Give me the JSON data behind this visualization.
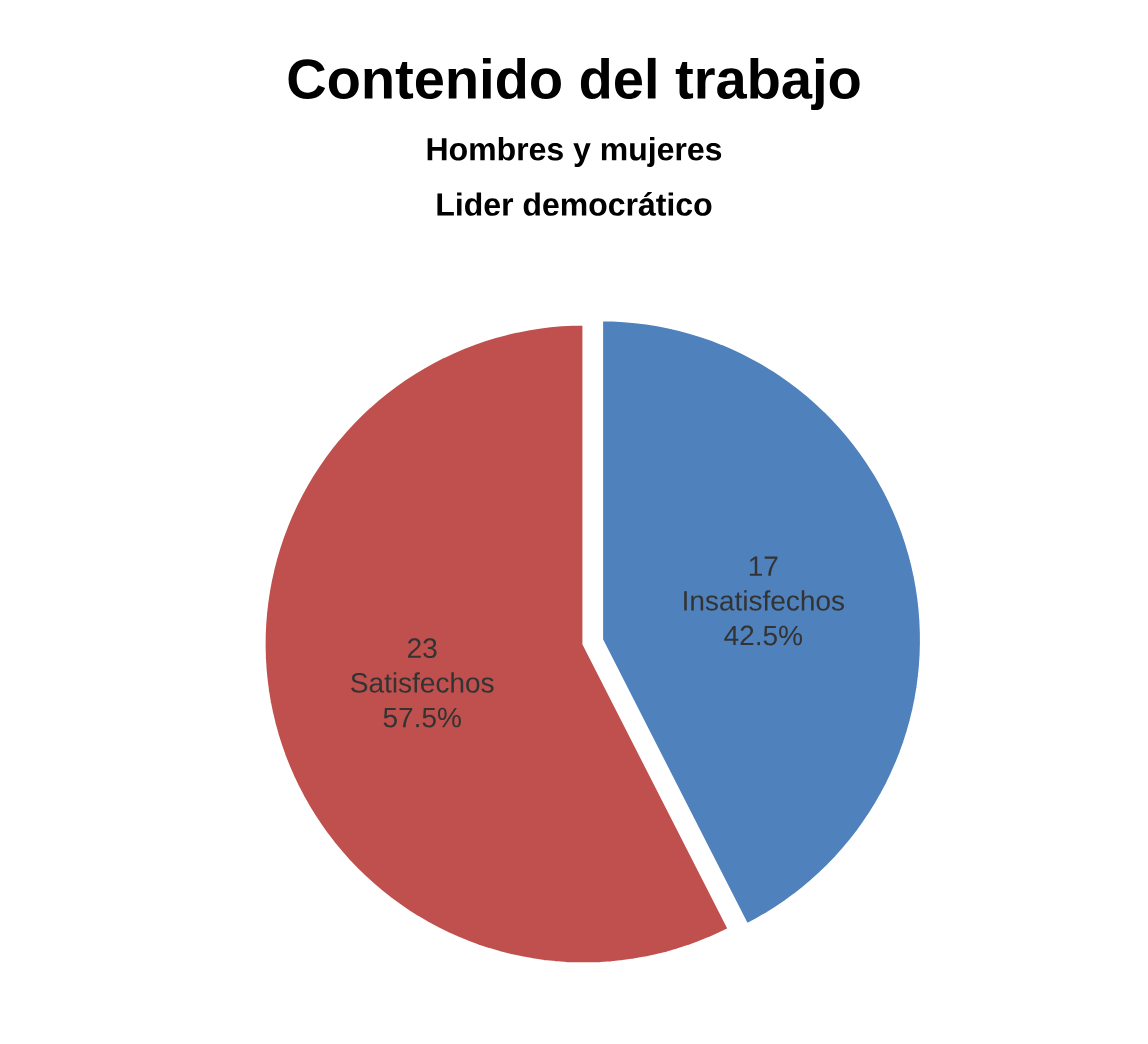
{
  "chart_data": {
    "type": "pie",
    "title": "Contenido del trabajo",
    "subtitle": "Hombres y mujeres",
    "annotations": [
      "Lider democrático",
      {
        "text": "17",
        "x": "Insatisfechos"
      },
      {
        "text": "23",
        "x": "Satisfechos"
      }
    ],
    "categories": [
      "Insatisfechos",
      "Satisfechos"
    ],
    "values": [
      42.5,
      57.5
    ],
    "colors": [
      "#4f81bd",
      "#c0504d"
    ],
    "value_labels": [
      "42.5%",
      "57.5%"
    ]
  }
}
